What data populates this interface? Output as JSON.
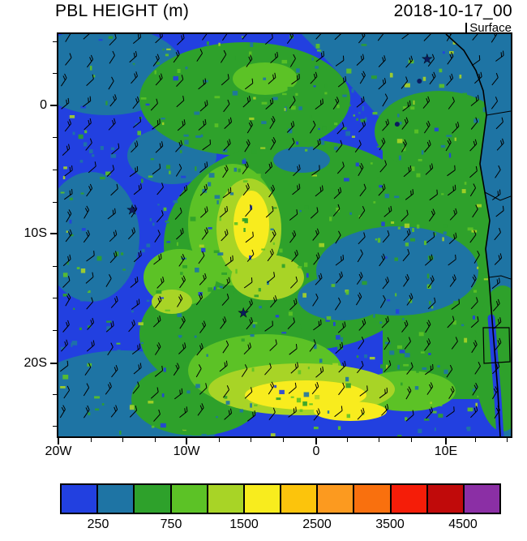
{
  "header": {
    "title": "PBL HEIGHT (m)",
    "date": "2018-10-17_00",
    "level": "Surface"
  },
  "chart_data": {
    "type": "heatmap",
    "title": "PBL HEIGHT (m)",
    "date": "2018-10-17_00",
    "level_label": "Surface",
    "field": "Planetary boundary layer height",
    "units": "m",
    "x_axis": {
      "ticks": [
        {
          "label": "20W",
          "f": 0.0
        },
        {
          "label": "10W",
          "f": 0.2832
        },
        {
          "label": "0",
          "f": 0.5699
        },
        {
          "label": "10E",
          "f": 0.8566
        }
      ]
    },
    "y_axis": {
      "ticks": [
        {
          "label": "0",
          "f": 0.1774
        },
        {
          "label": "10S",
          "f": 0.496
        },
        {
          "label": "20S",
          "f": 0.8185
        }
      ]
    },
    "colorbar": {
      "colors": [
        "#2240e0",
        "#1e74a4",
        "#2ea12b",
        "#5cc226",
        "#a8d426",
        "#f8ec1e",
        "#fcc40c",
        "#fc9a1f",
        "#f9700e",
        "#f51d08",
        "#c00a0a",
        "#8b2fa5"
      ],
      "boundary_labels": [
        "250",
        "750",
        "1500",
        "2500",
        "3500",
        "4500"
      ],
      "boundary_positions": [
        1,
        3,
        5,
        7,
        9,
        11
      ]
    },
    "overlays": {
      "wind_barbs": true,
      "station_markers": [
        {
          "fx": 0.163,
          "fy": 0.435
        },
        {
          "fx": 0.409,
          "fy": 0.692
        },
        {
          "fx": 0.815,
          "fy": 0.06
        }
      ],
      "island_dots": [
        {
          "fx": 0.798,
          "fy": 0.117
        },
        {
          "fx": 0.749,
          "fy": 0.224
        }
      ]
    }
  }
}
